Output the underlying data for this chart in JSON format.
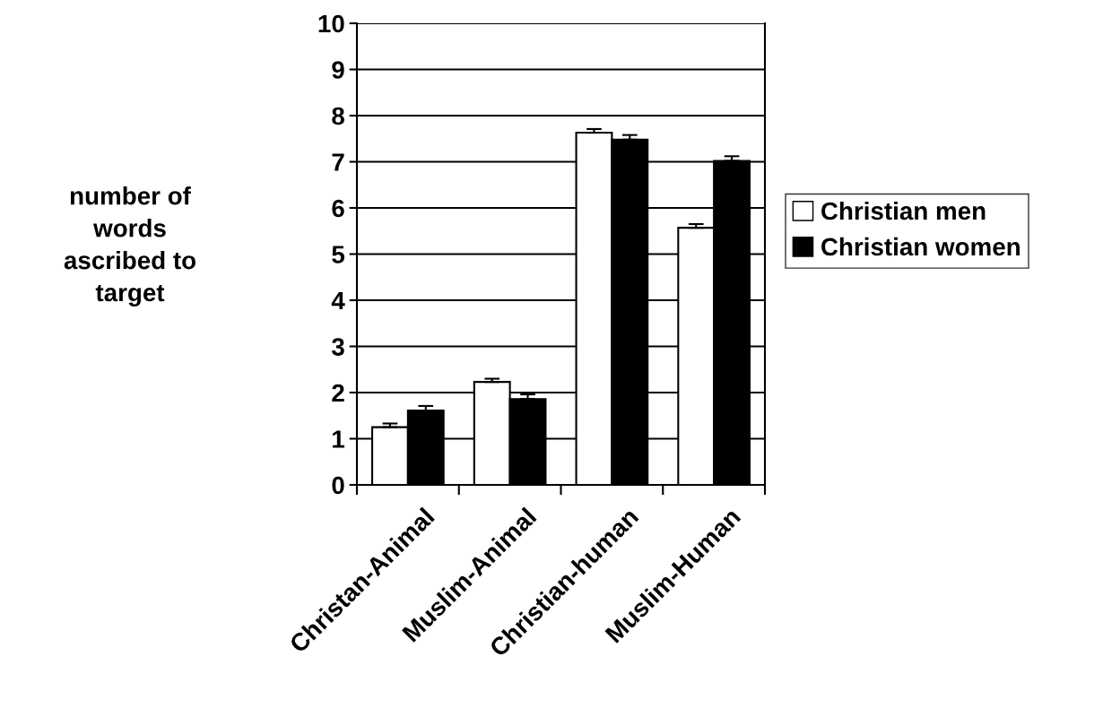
{
  "chart_data": {
    "type": "bar",
    "ylabel": "number of\nwords\nascribed to\ntarget",
    "categories": [
      "Christan-Animal",
      "Muslim-Animal",
      "Christian-human",
      "Muslim-Human"
    ],
    "series": [
      {
        "name": "Christian men",
        "color": "#ffffff",
        "values": [
          1.25,
          2.23,
          7.63,
          5.57
        ],
        "errors": [
          [
            1.25,
            1.33
          ],
          [
            2.23,
            2.3
          ],
          [
            7.63,
            7.71
          ],
          [
            5.57,
            5.65
          ]
        ]
      },
      {
        "name": "Christian women",
        "color": "#000000",
        "values": [
          1.61,
          1.86,
          7.48,
          7.02
        ],
        "errors": [
          [
            1.61,
            1.71
          ],
          [
            1.86,
            1.96
          ],
          [
            7.48,
            7.58
          ],
          [
            7.02,
            7.12
          ]
        ]
      }
    ],
    "ylim": [
      0,
      10
    ],
    "yticks": [
      0,
      1,
      2,
      3,
      4,
      5,
      6,
      7,
      8,
      9,
      10
    ],
    "grid": "y",
    "legend": "right"
  }
}
